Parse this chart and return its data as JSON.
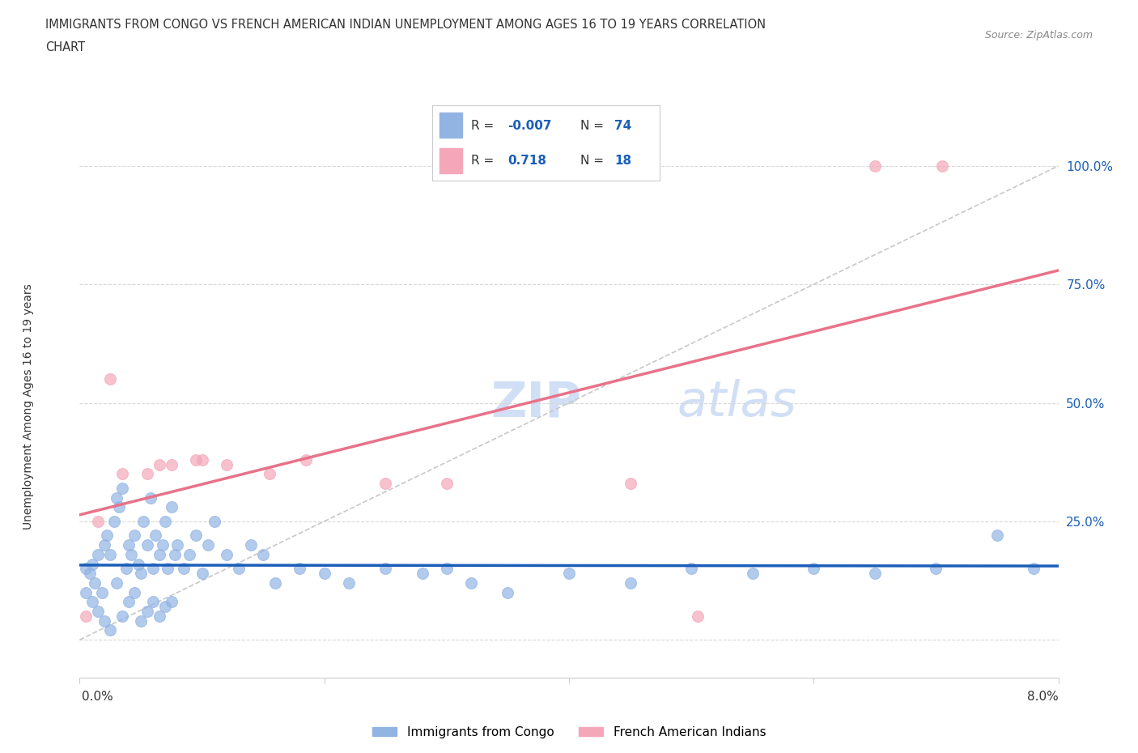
{
  "title_line1": "IMMIGRANTS FROM CONGO VS FRENCH AMERICAN INDIAN UNEMPLOYMENT AMONG AGES 16 TO 19 YEARS CORRELATION",
  "title_line2": "CHART",
  "source": "Source: ZipAtlas.com",
  "ylabel": "Unemployment Among Ages 16 to 19 years",
  "xlim": [
    0.0,
    8.0
  ],
  "ylim": [
    -8.0,
    108.0
  ],
  "ytick_positions": [
    0,
    25,
    50,
    75,
    100
  ],
  "ytick_labels": [
    "",
    "25.0%",
    "50.0%",
    "75.0%",
    "100.0%"
  ],
  "xtick_positions": [
    0.0,
    2.0,
    4.0,
    6.0,
    8.0
  ],
  "congo_color": "#92b4e3",
  "fai_color": "#f4a7b9",
  "line_congo_color": "#1a5eb8",
  "line_fai_color": "#e8728a",
  "diag_color": "#c8c8c8",
  "grid_color": "#d8d8d8",
  "congo_R": -0.007,
  "congo_N": 74,
  "fai_R": 0.718,
  "fai_N": 18,
  "legend_text_color": "#1a5eb8",
  "watermark_color": "#d0dff5",
  "background_color": "#ffffff",
  "congo_x": [
    0.05,
    0.08,
    0.1,
    0.12,
    0.15,
    0.18,
    0.2,
    0.22,
    0.25,
    0.28,
    0.3,
    0.32,
    0.35,
    0.38,
    0.4,
    0.42,
    0.45,
    0.48,
    0.5,
    0.52,
    0.55,
    0.58,
    0.6,
    0.62,
    0.65,
    0.68,
    0.7,
    0.72,
    0.75,
    0.78,
    0.8,
    0.85,
    0.9,
    0.95,
    1.0,
    1.05,
    1.1,
    1.2,
    1.3,
    1.4,
    1.5,
    1.6,
    1.8,
    2.0,
    2.2,
    2.5,
    2.8,
    3.0,
    3.2,
    3.5,
    4.0,
    4.5,
    5.0,
    5.5,
    6.0,
    6.5,
    7.0,
    7.5,
    7.8,
    0.05,
    0.1,
    0.15,
    0.2,
    0.25,
    0.3,
    0.35,
    0.4,
    0.45,
    0.5,
    0.55,
    0.6,
    0.65,
    0.7,
    0.75
  ],
  "congo_y": [
    15,
    14,
    16,
    12,
    18,
    10,
    20,
    22,
    18,
    25,
    30,
    28,
    32,
    15,
    20,
    18,
    22,
    16,
    14,
    25,
    20,
    30,
    15,
    22,
    18,
    20,
    25,
    15,
    28,
    18,
    20,
    15,
    18,
    22,
    14,
    20,
    25,
    18,
    15,
    20,
    18,
    12,
    15,
    14,
    12,
    15,
    14,
    15,
    12,
    10,
    14,
    12,
    15,
    14,
    15,
    14,
    15,
    22,
    15,
    10,
    8,
    6,
    4,
    2,
    12,
    5,
    8,
    10,
    4,
    6,
    8,
    5,
    7,
    8
  ],
  "fai_x": [
    0.05,
    0.15,
    0.25,
    0.35,
    0.55,
    0.65,
    0.75,
    1.0,
    1.2,
    1.55,
    1.85,
    2.5,
    3.0,
    4.5,
    5.05,
    6.5,
    7.05,
    0.95
  ],
  "fai_y": [
    5,
    25,
    55,
    35,
    35,
    37,
    37,
    38,
    37,
    35,
    38,
    33,
    33,
    33,
    5,
    100,
    100,
    38
  ]
}
